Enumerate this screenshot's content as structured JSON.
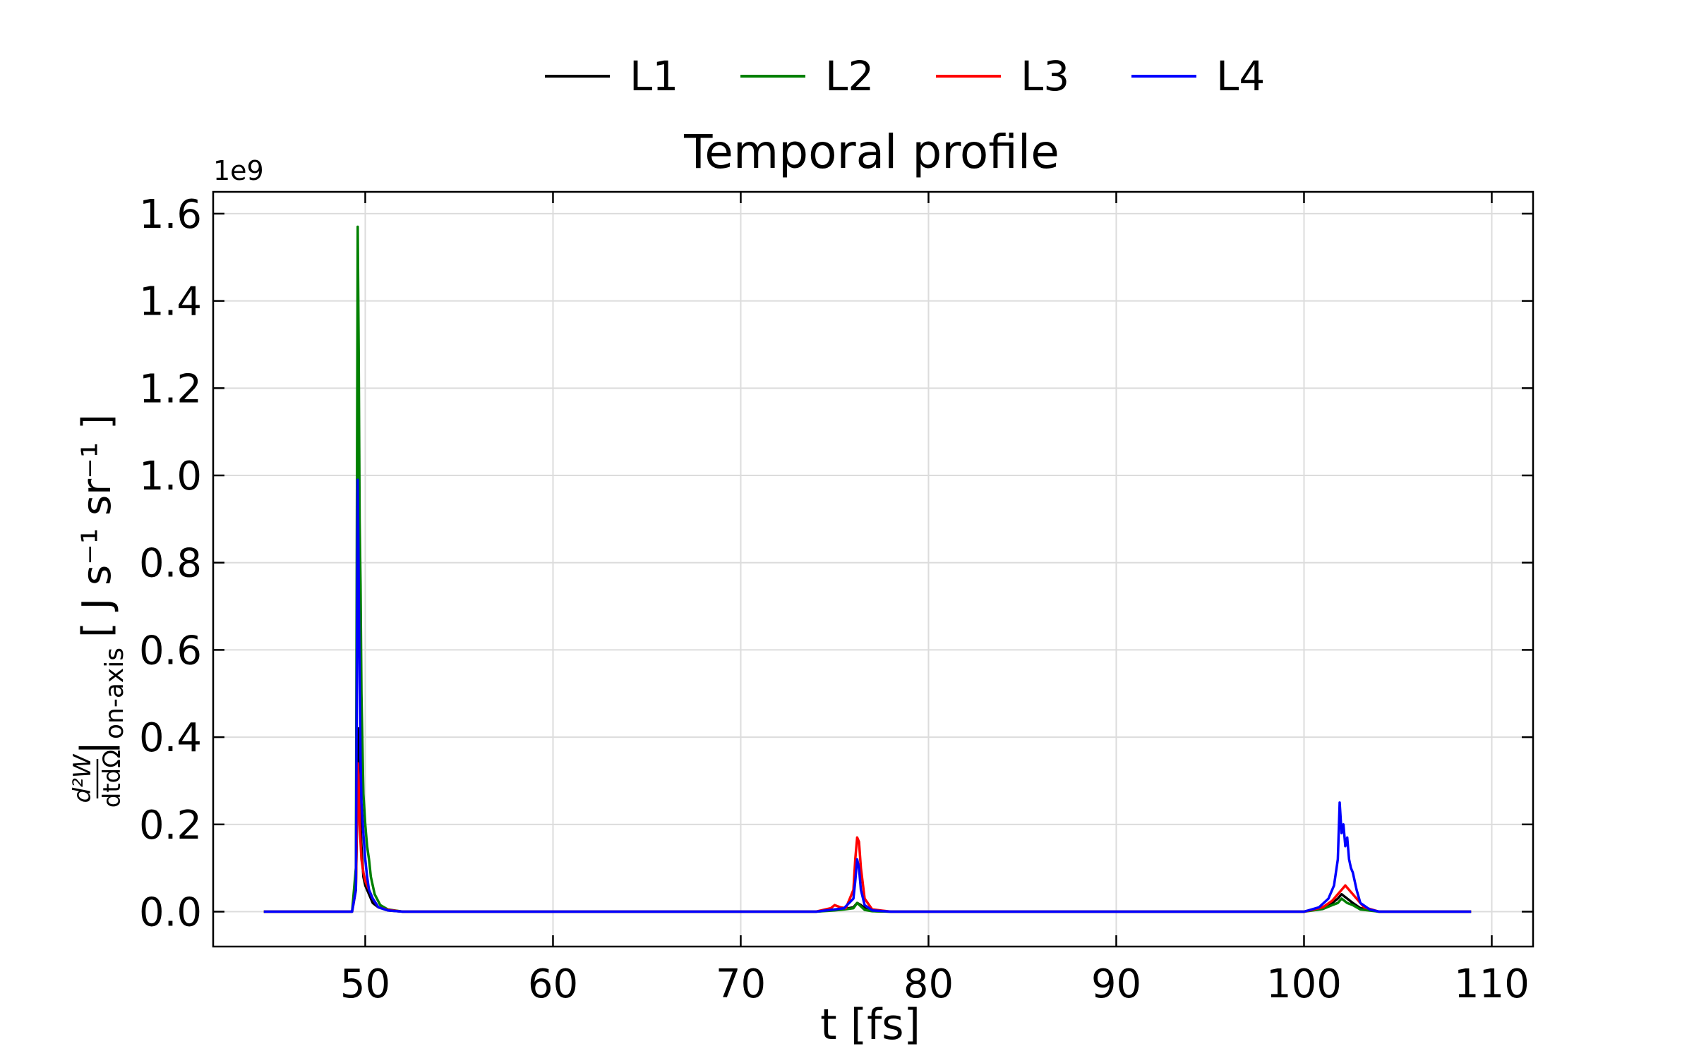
{
  "chart_data": {
    "type": "line",
    "title": "Temporal profile",
    "xlabel": "t [fs]",
    "ylabel": {
      "numerator": "d²W",
      "denominator": "dtdΩ",
      "subscript": "on-axis",
      "units": "[ J s⁻¹ sr⁻¹ ]"
    },
    "y_offset_label": "1e9",
    "xlim": [
      41.9,
      112.2
    ],
    "ylim": [
      -0.08,
      1.65
    ],
    "x_ticks": [
      50,
      60,
      70,
      80,
      90,
      100,
      110
    ],
    "x_tick_labels": [
      "50",
      "60",
      "70",
      "80",
      "90",
      "100",
      "110"
    ],
    "y_ticks": [
      0.0,
      0.2,
      0.4,
      0.6,
      0.8,
      1.0,
      1.2,
      1.4,
      1.6
    ],
    "y_tick_labels": [
      "0.0",
      "0.2",
      "0.4",
      "0.6",
      "0.8",
      "1.0",
      "1.2",
      "1.4",
      "1.6"
    ],
    "grid": true,
    "legend_position": "top-center-outside",
    "series": [
      {
        "name": "L1",
        "color": "#000000",
        "x": [
          44.6,
          49.3,
          49.5,
          49.6,
          49.65,
          49.7,
          49.8,
          49.9,
          50.0,
          50.1,
          50.2,
          50.4,
          50.7,
          51.2,
          52.0,
          60.0,
          74.0,
          75.0,
          75.5,
          76.0,
          76.2,
          76.4,
          76.7,
          77.2,
          78.0,
          90.0,
          100.0,
          101.0,
          101.5,
          101.8,
          102.0,
          102.3,
          102.6,
          103.0,
          104.0,
          108.9
        ],
        "y": [
          0.0,
          0.0,
          0.05,
          0.3,
          0.42,
          0.25,
          0.15,
          0.08,
          0.06,
          0.05,
          0.04,
          0.02,
          0.01,
          0.003,
          0.0,
          0.0,
          0.0,
          0.004,
          0.006,
          0.01,
          0.02,
          0.015,
          0.005,
          0.001,
          0.0,
          0.0,
          0.0,
          0.01,
          0.02,
          0.03,
          0.04,
          0.03,
          0.02,
          0.008,
          0.0,
          0.0
        ]
      },
      {
        "name": "L2",
        "color": "#008000",
        "x": [
          44.6,
          49.3,
          49.5,
          49.6,
          49.65,
          49.7,
          49.75,
          49.8,
          49.9,
          50.0,
          50.1,
          50.2,
          50.3,
          50.5,
          50.8,
          51.2,
          52.0,
          60.0,
          74.0,
          75.0,
          75.5,
          76.0,
          76.2,
          76.4,
          76.6,
          77.0,
          78.0,
          90.0,
          100.0,
          101.0,
          101.5,
          101.8,
          102.0,
          102.3,
          102.6,
          103.0,
          104.0,
          108.9
        ],
        "y": [
          0.0,
          0.0,
          0.1,
          1.57,
          1.28,
          0.9,
          0.75,
          0.5,
          0.27,
          0.2,
          0.15,
          0.12,
          0.08,
          0.04,
          0.015,
          0.005,
          0.0,
          0.0,
          0.0,
          0.003,
          0.005,
          0.008,
          0.02,
          0.012,
          0.004,
          0.001,
          0.0,
          0.0,
          0.0,
          0.006,
          0.015,
          0.02,
          0.03,
          0.02,
          0.015,
          0.005,
          0.0,
          0.0
        ]
      },
      {
        "name": "L3",
        "color": "#ff0000",
        "x": [
          44.6,
          49.3,
          49.5,
          49.6,
          49.65,
          49.7,
          49.8,
          49.9,
          50.0,
          50.1,
          50.2,
          50.4,
          50.7,
          51.2,
          52.0,
          60.0,
          74.0,
          74.8,
          75.0,
          75.3,
          75.6,
          76.0,
          76.1,
          76.2,
          76.3,
          76.4,
          76.6,
          77.0,
          78.0,
          90.0,
          100.0,
          101.0,
          101.5,
          101.8,
          102.0,
          102.2,
          102.4,
          102.6,
          102.8,
          103.2,
          104.0,
          108.9
        ],
        "y": [
          0.0,
          0.0,
          0.05,
          0.34,
          0.3,
          0.2,
          0.12,
          0.09,
          0.07,
          0.06,
          0.05,
          0.03,
          0.01,
          0.004,
          0.0,
          0.0,
          0.0,
          0.008,
          0.015,
          0.01,
          0.008,
          0.05,
          0.12,
          0.17,
          0.16,
          0.1,
          0.03,
          0.005,
          0.0,
          0.0,
          0.0,
          0.01,
          0.025,
          0.04,
          0.05,
          0.06,
          0.05,
          0.04,
          0.03,
          0.01,
          0.0,
          0.0
        ]
      },
      {
        "name": "L4",
        "color": "#0000ff",
        "x": [
          44.6,
          49.3,
          49.5,
          49.6,
          49.65,
          49.7,
          49.75,
          49.8,
          49.9,
          50.0,
          50.1,
          50.2,
          50.4,
          50.7,
          51.2,
          52.0,
          60.0,
          74.0,
          75.0,
          75.5,
          76.0,
          76.1,
          76.2,
          76.3,
          76.4,
          76.6,
          77.0,
          78.0,
          90.0,
          100.0,
          100.8,
          101.3,
          101.6,
          101.8,
          101.9,
          102.0,
          102.1,
          102.2,
          102.3,
          102.4,
          102.5,
          102.6,
          102.8,
          103.0,
          103.5,
          104.0,
          108.9
        ],
        "y": [
          0.0,
          0.0,
          0.05,
          0.99,
          0.75,
          0.53,
          0.35,
          0.25,
          0.18,
          0.12,
          0.08,
          0.05,
          0.03,
          0.01,
          0.003,
          0.0,
          0.0,
          0.0,
          0.005,
          0.008,
          0.03,
          0.07,
          0.12,
          0.1,
          0.05,
          0.015,
          0.003,
          0.0,
          0.0,
          0.0,
          0.01,
          0.03,
          0.06,
          0.12,
          0.25,
          0.18,
          0.2,
          0.15,
          0.17,
          0.12,
          0.1,
          0.09,
          0.05,
          0.02,
          0.005,
          0.0,
          0.0
        ]
      }
    ]
  }
}
